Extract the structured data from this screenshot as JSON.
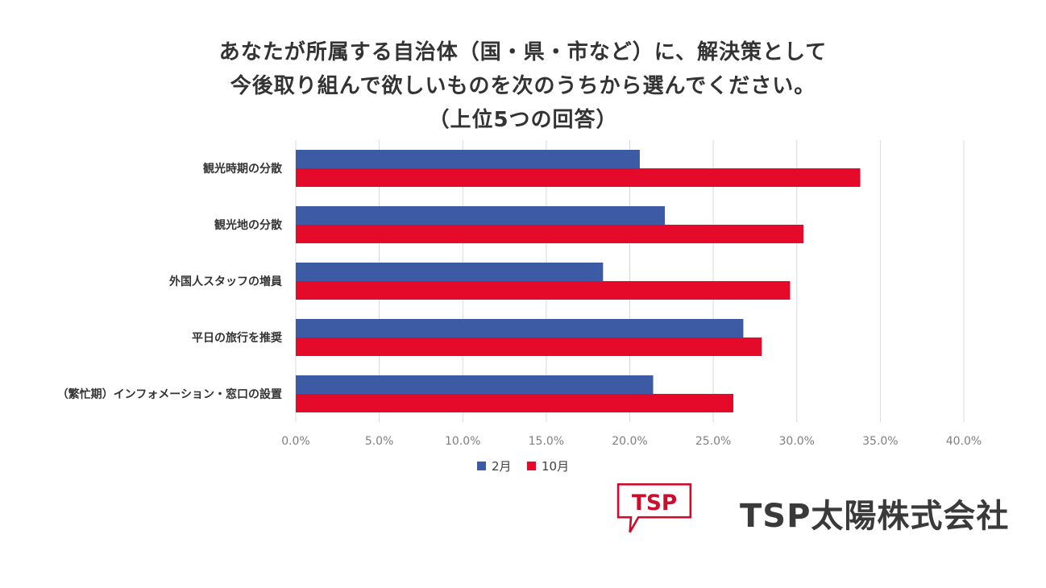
{
  "chart_data": {
    "type": "bar",
    "orientation": "horizontal",
    "title_lines": [
      "あなたが所属する自治体（国・県・市など）に、解決策として",
      "今後取り組んで欲しいものを次のうちから選んでください。",
      "（上位5つの回答）"
    ],
    "categories": [
      "観光時期の分散",
      "観光地の分散",
      "外国人スタッフの増員",
      "平日の旅行を推奨",
      "（繁忙期）インフォメーション・窓口の設置"
    ],
    "series": [
      {
        "name": "2月",
        "values": [
          20.6,
          22.1,
          18.4,
          26.8,
          21.4
        ],
        "color": "#3d5aa5"
      },
      {
        "name": "10月",
        "values": [
          33.8,
          30.4,
          29.6,
          27.9,
          26.2
        ],
        "color": "#e5092a"
      }
    ],
    "xlim": [
      0,
      40
    ],
    "xticks": [
      "0.0%",
      "5.0%",
      "10.0%",
      "15.0%",
      "20.0%",
      "25.0%",
      "30.0%",
      "35.0%",
      "40.0%"
    ],
    "grid": true,
    "legend": "bottom-center"
  },
  "logo": {
    "mark_text": "TSP",
    "company_name": "TSP太陽株式会社",
    "color": "#c8102e"
  }
}
